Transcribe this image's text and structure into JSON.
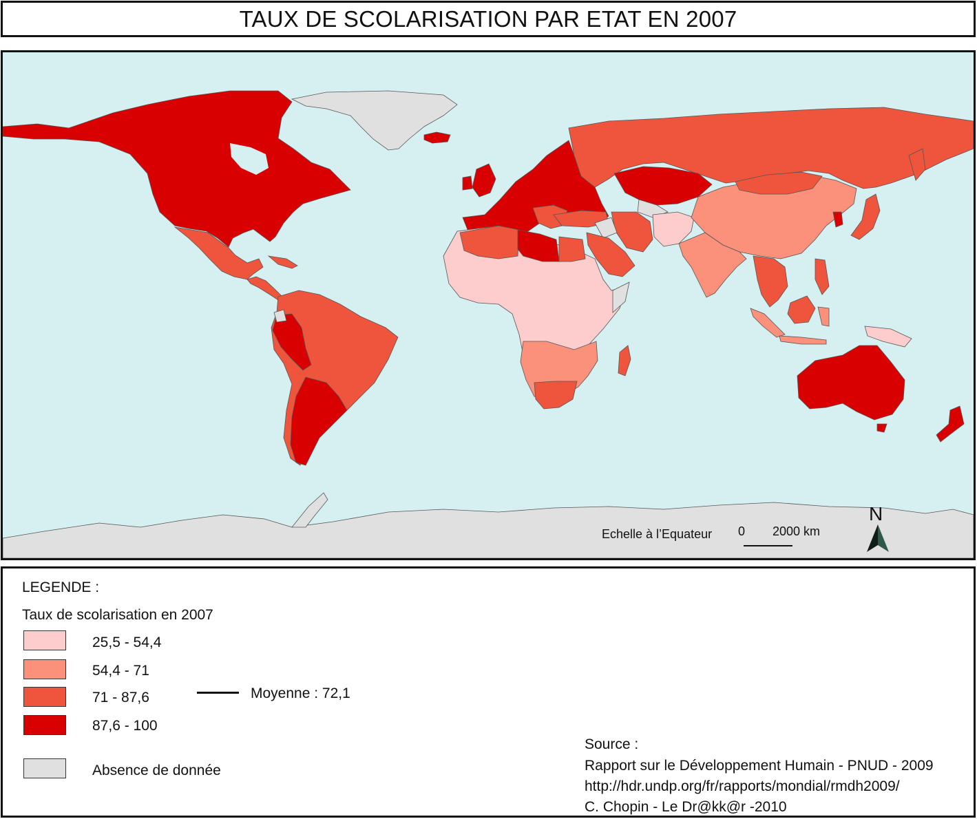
{
  "title": "TAUX DE SCOLARISATION PAR ETAT EN 2007",
  "map": {
    "colors": {
      "ocean": "#d6eff1",
      "no_data": "#e0e0e0",
      "class1": "#fdcccc",
      "class2": "#fb917a",
      "class3": "#ef553d",
      "class4": "#d80000",
      "border": "#555555"
    },
    "scale": {
      "label": "Echelle à l’Equateur",
      "zero": "0",
      "distance": "2000 km"
    },
    "north_arrow": {
      "letter": "N",
      "icon": "north-arrow-icon"
    }
  },
  "legend": {
    "heading": "LEGENDE :",
    "subtitle": "Taux de scolarisation en 2007",
    "classes": [
      {
        "label": "25,5 - 54,4",
        "color": "#fdcccc"
      },
      {
        "label": "54,4 - 71",
        "color": "#fb917a"
      },
      {
        "label": "71 - 87,6",
        "color": "#ef553d"
      },
      {
        "label": "87,6 - 100",
        "color": "#d80000"
      }
    ],
    "no_data": {
      "label": "Absence de donnée",
      "color": "#e0e0e0"
    },
    "mean": {
      "label": "Moyenne : 72,1"
    }
  },
  "source": {
    "heading": "Source :",
    "lines": [
      "Rapport sur le Développement Humain - PNUD - 2009",
      "http://hdr.undp.org/fr/rapports/mondial/rmdh2009/",
      "C. Chopin - Le Dr@kk@r -2010"
    ]
  }
}
